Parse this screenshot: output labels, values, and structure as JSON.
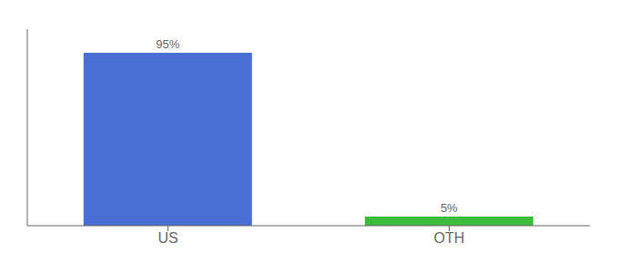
{
  "chart_data": {
    "type": "bar",
    "categories": [
      "US",
      "OTH"
    ],
    "values": [
      95,
      5
    ],
    "value_labels": [
      "95%",
      "5%"
    ],
    "data_labels": true,
    "colors": [
      "#4a6fd4",
      "#3dbb3d"
    ],
    "ylim": [
      0,
      108
    ],
    "tick_labels": "x",
    "grid": false
  }
}
